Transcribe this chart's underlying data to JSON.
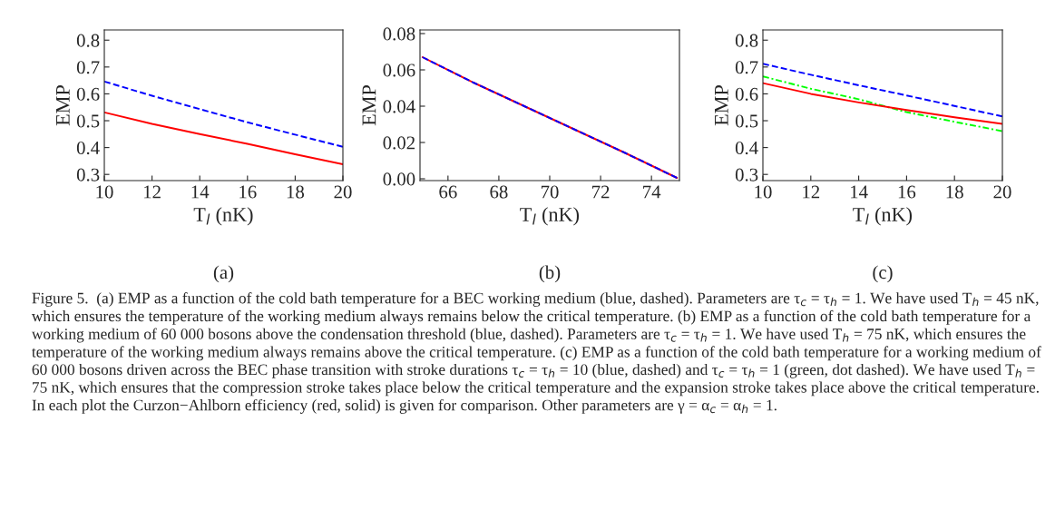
{
  "chart_data": [
    {
      "type": "line",
      "xlabel": "T$_{l}$ (nK)",
      "ylabel": "EMP",
      "xlim": [
        10,
        20
      ],
      "ylim": [
        0.277,
        0.838
      ],
      "xticks": [
        10,
        12,
        14,
        16,
        18,
        20
      ],
      "yticks": [
        0.3,
        0.4,
        0.5,
        0.6,
        0.7,
        0.8
      ],
      "annotations": [
        "(a)"
      ],
      "series": [
        {
          "color": "#0000ff",
          "line_style": "dashed",
          "x": [
            10,
            12,
            14,
            16,
            18,
            20
          ],
          "values": [
            0.646,
            0.593,
            0.543,
            0.494,
            0.448,
            0.403
          ]
        },
        {
          "color": "#ff0000",
          "line_style": "solid",
          "x": [
            10,
            12,
            14,
            16,
            18,
            20
          ],
          "values": [
            0.531,
            0.488,
            0.45,
            0.414,
            0.375,
            0.338
          ]
        }
      ]
    },
    {
      "type": "line",
      "xlabel": "T$_{l}$ (nK)",
      "ylabel": "EMP",
      "xlim": [
        64.9,
        75.1
      ],
      "ylim": [
        -0.001,
        0.082
      ],
      "xticks": [
        66,
        68,
        70,
        72,
        74
      ],
      "yticks": [
        {
          "value": 0,
          "label": "0.00"
        },
        {
          "value": 0.02,
          "label": "0.02"
        },
        {
          "value": 0.04,
          "label": "0.04"
        },
        {
          "value": 0.06,
          "label": "0.06"
        },
        {
          "value": 0.08,
          "label": "0.08"
        }
      ],
      "annotations": [
        "(b)"
      ],
      "series": [
        {
          "color": "#ff0000",
          "line_style": "solid",
          "x": [
            65,
            67,
            69,
            71,
            73,
            75
          ],
          "values": [
            0.067,
            0.053,
            0.04,
            0.027,
            0.014,
            0.0005
          ]
        },
        {
          "color": "#0000ff",
          "line_style": "dashed",
          "x": [
            65,
            67,
            69,
            71,
            73,
            75
          ],
          "values": [
            0.067,
            0.053,
            0.04,
            0.027,
            0.014,
            0.0005
          ]
        }
      ]
    },
    {
      "type": "line",
      "xlabel": "T$_{l}$ (nK)",
      "ylabel": "EMP",
      "xlim": [
        10,
        20
      ],
      "ylim": [
        0.277,
        0.838
      ],
      "xticks": [
        10,
        12,
        14,
        16,
        18,
        20
      ],
      "yticks": [
        0.3,
        0.4,
        0.5,
        0.6,
        0.7,
        0.8
      ],
      "annotations": [
        "(c)",
        "Figure 5.  (a) EMP as a function of the cold bath temperature for a BEC working medium (blue, dashed). Parameters are τ$_{c}$ = τ$_{h}$ = 1. We have used T$_{h}$ = 45 nK, which ensures the temperature of the working medium always remains below the critical temperature. (b) EMP as a function of the cold bath temperature for a working medium of 60 000 bosons above the condensation threshold (blue, dashed). Parameters are τ$_{c}$ = τ$_{h}$ = 1. We have used T$_{h}$ = 75 nK, which ensures the temperature of the working medium always remains above the critical temperature. (c) EMP as a function of the cold bath temperature for a working medium of 60 000 bosons driven across the BEC phase transition with stroke durations τ$_{c}$ = τ$_{h}$ = 10 (blue, dashed) and τ$_{c}$ = τ$_{h}$ = 1 (green, dot dashed). We have used T$_{h}$ = 75 nK, which ensures that the compression stroke takes place below the critical temperature and the expansion stroke takes place above the critical temperature. In each plot the Curzon−Ahlborn efficiency (red, solid) is given for comparison. Other parameters are γ = α$_{c}$ = α$_{h}$ = 1."
      ],
      "series": [
        {
          "color": "#0000ff",
          "line_style": "dashed",
          "x": [
            10,
            12,
            14,
            16,
            18,
            20
          ],
          "values": [
            0.712,
            0.671,
            0.632,
            0.594,
            0.555,
            0.516
          ]
        },
        {
          "color": "#00ff00",
          "line_style": "dashdot",
          "x": [
            10,
            12,
            14,
            16,
            18,
            20
          ],
          "values": [
            0.665,
            0.619,
            0.58,
            0.532,
            0.496,
            0.461
          ]
        },
        {
          "color": "#ff0000",
          "line_style": "solid",
          "x": [
            10,
            12,
            14,
            16,
            18,
            20
          ],
          "values": [
            0.64,
            0.6,
            0.568,
            0.54,
            0.513,
            0.488
          ]
        }
      ]
    }
  ]
}
